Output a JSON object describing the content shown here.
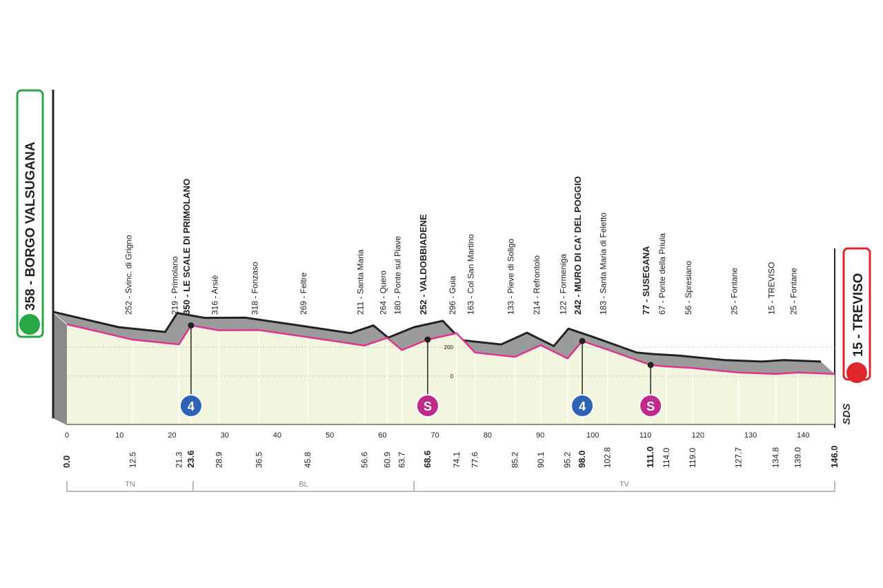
{
  "chart_data": {
    "type": "profile",
    "x": [
      {
        "value": 0,
        "label": "0.0"
      },
      12.5,
      21.3,
      23.6,
      28.9,
      36.5,
      45.8,
      56.6,
      60.9,
      63.7,
      68.6,
      74.1,
      77.6,
      85.2,
      90.1,
      95.2,
      {
        "value": 98,
        "label": "98.0"
      },
      102.8,
      {
        "value": 111,
        "label": "111.0"
      },
      {
        "value": 114,
        "label": "114.0"
      },
      {
        "value": 119,
        "label": "119.0"
      },
      127.7,
      134.8,
      {
        "value": 139,
        "label": "139.0"
      },
      {
        "value": 146,
        "label": "146.0"
      }
    ],
    "values": [
      358,
      252,
      219,
      350,
      316,
      318,
      269,
      211,
      264,
      180,
      252,
      296,
      163,
      133,
      214,
      122,
      242,
      183,
      77,
      67,
      56,
      25,
      15,
      25,
      15
    ],
    "value_labels": [
      "358 - BORGO VALSUGANA",
      "252 - Svinc. di Grigno",
      "219 - Primolano",
      "350 - LE SCALE DI PRIMOLANO",
      "316 - Arsiè",
      "318 - Fonzaso",
      "269 - Feltre",
      "211 - Santa Maria",
      "264 - Quero",
      "180 - Ponte sul Piave",
      "252 - VALDOBBIADENE",
      "296 - Guia",
      "163 - Col San Martino",
      "133 - Pieve di Soligo",
      "214 - Refrontolo",
      "122 - Formeniga",
      "242 - MURO DI CA' DEL POGGIO",
      "183 - Santa Maria di Feletto",
      "77 - SUSEGANA",
      "67 - Ponte della Priula",
      "56 - Spresiano",
      "25 - Fontane",
      "15 - TREVISO",
      "25 - Fontane",
      "15 - TREVISO"
    ],
    "emphasis": [
      0,
      3,
      10,
      16,
      18,
      24
    ],
    "xlim": [
      0,
      146
    ],
    "xticks": [
      0,
      10,
      20,
      30,
      40,
      50,
      60,
      70,
      80,
      90,
      100,
      110,
      120,
      130,
      140
    ],
    "ylim": [
      -333,
      800
    ],
    "yticks": [
      0,
      200
    ],
    "line_color": "#e0338f",
    "relief_color": "#9b9b9b",
    "face_color": "#f3f6df",
    "markers": [
      {
        "km": 23.6,
        "label": "4",
        "kind": "kom",
        "color": "#2c63b4"
      },
      {
        "km": 68.6,
        "label": "S",
        "kind": "sprint",
        "color": "#c02a8a"
      },
      {
        "km": 98,
        "label": "4",
        "kind": "kom",
        "color": "#2c63b4"
      },
      {
        "km": 111,
        "label": "S",
        "kind": "sprint",
        "color": "#c02a8a"
      }
    ],
    "regions": [
      "TN",
      "BL",
      "TV"
    ],
    "region_bounds": [
      0,
      24,
      66,
      146
    ],
    "logo": "SDS"
  }
}
